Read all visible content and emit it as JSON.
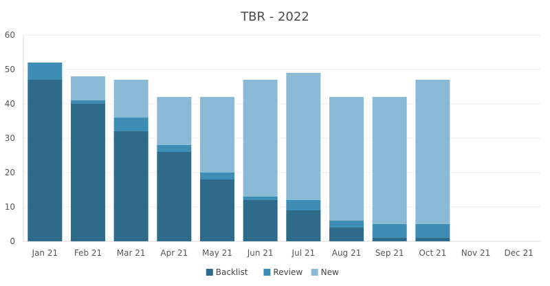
{
  "chart_data": {
    "type": "bar",
    "stacked": true,
    "title": "TBR - 2022",
    "xlabel": "",
    "ylabel": "",
    "ylim": [
      0,
      60
    ],
    "yticks": [
      0,
      10,
      20,
      30,
      40,
      50,
      60
    ],
    "grid": true,
    "legend_position": "bottom",
    "categories": [
      "Jan 21",
      "Feb 21",
      "Mar 21",
      "Apr 21",
      "May 21",
      "Jun 21",
      "Jul 21",
      "Aug 21",
      "Sep 21",
      "Oct 21",
      "Nov 21",
      "Dec 21"
    ],
    "series": [
      {
        "name": "Backlist",
        "color": "#2e6a8a",
        "values": [
          47,
          40,
          32,
          26,
          18,
          12,
          9,
          4,
          1,
          1,
          0,
          0
        ]
      },
      {
        "name": "Review",
        "color": "#3e8db5",
        "values": [
          5,
          1,
          4,
          2,
          2,
          1,
          3,
          2,
          4,
          4,
          0,
          0
        ]
      },
      {
        "name": "New",
        "color": "#8bbad6",
        "values": [
          0,
          7,
          11,
          14,
          22,
          34,
          37,
          36,
          37,
          42,
          0,
          0
        ]
      }
    ]
  }
}
